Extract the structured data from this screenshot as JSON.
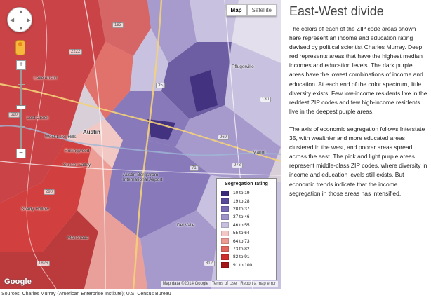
{
  "map": {
    "type_buttons": [
      "Map",
      "Satellite"
    ],
    "places": [
      "Lake Austin",
      "Austin",
      "Rollingwood",
      "West Lake Hills",
      "Sunset Valley",
      "Lost Creek",
      "Shady Hollow",
      "Manchaca",
      "Pflugerville",
      "Manor",
      "Del Valle",
      "Austin-Bergstrom International Airport"
    ],
    "highways": [
      "2222",
      "620",
      "183",
      "290",
      "71",
      "1826",
      "35",
      "130",
      "973",
      "812",
      "969"
    ],
    "google_logo": "Google",
    "attribution": [
      "Map data ©2014 Google",
      "Terms of Use",
      "Report a map error"
    ]
  },
  "legend": {
    "title": "Segregation rating",
    "items": [
      {
        "label": "10 to 19",
        "color": "#3b2a7a"
      },
      {
        "label": "19 to 28",
        "color": "#5b4a9a"
      },
      {
        "label": "28 to 37",
        "color": "#7a6ab5"
      },
      {
        "label": "37 to 46",
        "color": "#9e92c9"
      },
      {
        "label": "46 to 55",
        "color": "#c7bfdf"
      },
      {
        "label": "55 to 64",
        "color": "#f3c7c3"
      },
      {
        "label": "64 to 73",
        "color": "#ec9a92"
      },
      {
        "label": "73 to 82",
        "color": "#e2665e"
      },
      {
        "label": "82 to 91",
        "color": "#d0302c"
      },
      {
        "label": "91 to 100",
        "color": "#a51416"
      }
    ]
  },
  "panel": {
    "title": "East-West divide",
    "paragraphs": [
      "The colors of each of the ZIP code areas shown here represent an income and education rating devised by political scientist Charles Murray. Deep red represents areas that have the highest median incomes and education levels. The dark purple areas have the lowest combinations of income and education. At each end of the color spectrum, little diversity exists: Few low-income residents live in the reddest ZIP codes and few high-income residents live in the deepest purple areas.",
      "The axis of economic segregation follows Interstate 35, with wealthier and more educated areas clustered in the west, and poorer areas spread across the east. The pink and light purple areas represent middle-class ZIP codes, where diversity in income and education levels still exists. But economic trends indicate that the income segregation in those areas has intensified."
    ]
  },
  "source": "Sources: Charles Murray (American Enterprise Institute); U.S. Census Bureau"
}
